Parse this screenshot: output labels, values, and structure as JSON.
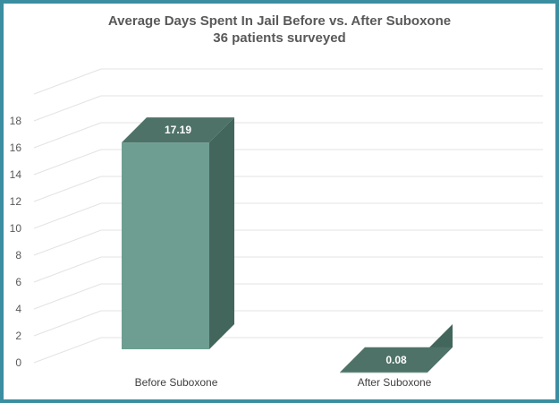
{
  "chart_data": {
    "type": "bar",
    "style": "3d-column",
    "title": "Average Days Spent In Jail Before vs. After Suboxone",
    "subtitle": "36 patients surveyed",
    "categories": [
      "Before Suboxone",
      "After Suboxone"
    ],
    "values": [
      17.19,
      0.08
    ],
    "data_labels": [
      "17.19",
      "0.08"
    ],
    "y_ticks": [
      0,
      2,
      4,
      6,
      8,
      10,
      12,
      14,
      16,
      18
    ],
    "ylim": [
      0,
      18
    ],
    "xlabel": "",
    "ylabel": "",
    "grid": true,
    "legend": "none",
    "colors": {
      "bar_front": "#6e9e92",
      "bar_top": "#4e7268",
      "bar_side": "#43665c",
      "gridline": "#e3e3e3",
      "frame_border": "#3a8ea0",
      "title_text": "#595959"
    }
  }
}
